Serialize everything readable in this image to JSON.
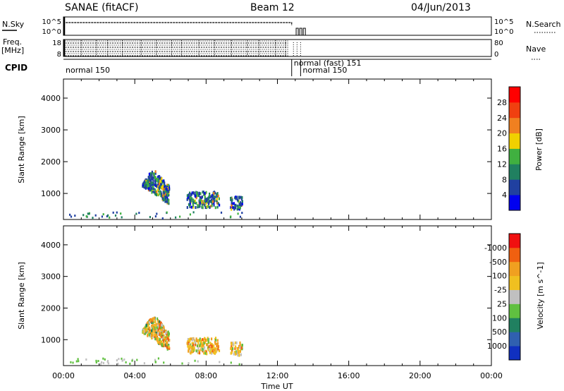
{
  "header": {
    "radar": "SANAE (fitACF)",
    "beam": "Beam 12",
    "date": "04/Jun/2013"
  },
  "top_panels": {
    "nsky_label": "N.Sky",
    "nsky_ticks": [
      "10^5",
      "10^0"
    ],
    "nsearch_label": "N.Search",
    "nsearch_ticks": [
      "10^5",
      "10^0"
    ],
    "freq_label": "Freq.",
    "freq_unit": "[MHz]",
    "freq_ticks": [
      "18",
      "8"
    ],
    "nave_label": "Nave",
    "nave_ticks": [
      "80",
      "0"
    ],
    "cpid_label": "CPID",
    "cpid_segments": [
      {
        "label": "normal 150",
        "start_h": 0.0,
        "end_h": 12.8
      },
      {
        "label": "normal (fast) 151",
        "start_h": 12.8,
        "end_h": 13.3
      },
      {
        "label": "normal 150",
        "start_h": 13.3,
        "end_h": 24.0
      }
    ]
  },
  "chart_data": [
    {
      "type": "heatmap",
      "name": "power",
      "ylabel": "Slant Range [km]",
      "yticks": [
        1000,
        2000,
        3000,
        4000
      ],
      "ylim": [
        180,
        4600
      ],
      "xlim": [
        0,
        24
      ],
      "colorbar_label": "Power [dB]",
      "colorbar_ticks": [
        "4",
        "8",
        "12",
        "16",
        "20",
        "24",
        "28"
      ],
      "colorbar_colors": [
        "#0000f0",
        "#2040a0",
        "#208060",
        "#40b040",
        "#f0d000",
        "#f08020",
        "#f04010",
        "#ff0000"
      ],
      "scatter_regions": [
        {
          "t0": 4.4,
          "t1": 5.9,
          "r0": 650,
          "r1": 1700,
          "level": "mixed-high"
        },
        {
          "t0": 6.9,
          "t1": 8.7,
          "r0": 550,
          "r1": 1050,
          "level": "mixed-mid"
        },
        {
          "t0": 9.3,
          "t1": 10.0,
          "r0": 500,
          "r1": 900,
          "level": "mixed-mid"
        },
        {
          "t0": 0.2,
          "t1": 10.0,
          "r0": 200,
          "r1": 400,
          "level": "ground"
        }
      ]
    },
    {
      "type": "heatmap",
      "name": "velocity",
      "ylabel": "Slant Range [km]",
      "yticks": [
        1000,
        2000,
        3000,
        4000
      ],
      "ylim": [
        180,
        4600
      ],
      "xlim": [
        0,
        24
      ],
      "xticks": [
        "00:00",
        "04:00",
        "08:00",
        "12:00",
        "16:00",
        "20:00",
        "00:00"
      ],
      "xlabel": "Time UT",
      "colorbar_label": "Velocity [m s^-1]",
      "colorbar_ticks": [
        "1000",
        "500",
        "100",
        "25",
        "-25",
        "-100",
        "-500",
        "-1000"
      ],
      "colorbar_colors": [
        "#1030c0",
        "#3060b0",
        "#208060",
        "#60c040",
        "#c0c0c0",
        "#f0c020",
        "#f0a020",
        "#f06010",
        "#f01010"
      ],
      "scatter_regions": [
        {
          "t0": 4.4,
          "t1": 5.9,
          "r0": 650,
          "r1": 1700,
          "level": "mixed"
        },
        {
          "t0": 6.9,
          "t1": 8.7,
          "r0": 550,
          "r1": 1050,
          "level": "negative"
        },
        {
          "t0": 9.3,
          "t1": 10.0,
          "r0": 500,
          "r1": 900,
          "level": "negative"
        },
        {
          "t0": 0.2,
          "t1": 10.0,
          "r0": 200,
          "r1": 400,
          "level": "ground"
        }
      ]
    }
  ]
}
